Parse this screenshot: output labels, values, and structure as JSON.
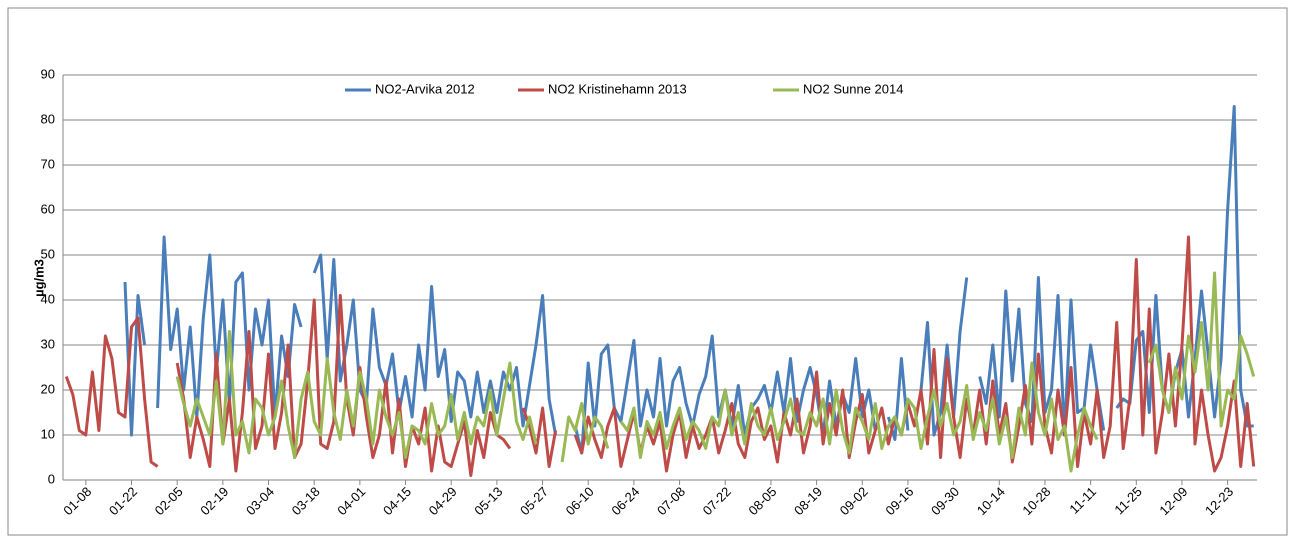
{
  "chart_data": {
    "type": "line",
    "y_label": "µg/m3",
    "ylim": [
      0,
      90
    ],
    "yticks": [
      0,
      10,
      20,
      30,
      40,
      50,
      60,
      70,
      80,
      90
    ],
    "grid": true,
    "legend": "top",
    "categories": [
      null,
      null,
      null,
      "01-08",
      null,
      null,
      null,
      null,
      null,
      null,
      "01-22",
      null,
      null,
      null,
      null,
      null,
      null,
      "02-05",
      null,
      null,
      null,
      null,
      null,
      null,
      "02-19",
      null,
      null,
      null,
      null,
      null,
      null,
      "03-04",
      null,
      null,
      null,
      null,
      null,
      null,
      "03-18",
      null,
      null,
      null,
      null,
      null,
      null,
      "04-01",
      null,
      null,
      null,
      null,
      null,
      null,
      "04-15",
      null,
      null,
      null,
      null,
      null,
      null,
      "04-29",
      null,
      null,
      null,
      null,
      null,
      null,
      "05-13",
      null,
      null,
      null,
      null,
      null,
      null,
      "05-27",
      null,
      null,
      null,
      null,
      null,
      null,
      "06-10",
      null,
      null,
      null,
      null,
      null,
      null,
      "06-24",
      null,
      null,
      null,
      null,
      null,
      null,
      "07-08",
      null,
      null,
      null,
      null,
      null,
      null,
      "07-22",
      null,
      null,
      null,
      null,
      null,
      null,
      "08-05",
      null,
      null,
      null,
      null,
      null,
      null,
      "08-19",
      null,
      null,
      null,
      null,
      null,
      null,
      "09-02",
      null,
      null,
      null,
      null,
      null,
      null,
      "09-16",
      null,
      null,
      null,
      null,
      null,
      null,
      "09-30",
      null,
      null,
      null,
      null,
      null,
      null,
      "10-14",
      null,
      null,
      null,
      null,
      null,
      null,
      "10-28",
      null,
      null,
      null,
      null,
      null,
      null,
      "11-11",
      null,
      null,
      null,
      null,
      null,
      null,
      "11-25",
      null,
      null,
      null,
      null,
      null,
      null,
      "12-09",
      null,
      null,
      null,
      null,
      null,
      null,
      "12-23",
      null,
      null,
      null,
      null
    ],
    "series": [
      {
        "name": "NO2-Arvika 2012",
        "color": "#4a7ebb",
        "values": [
          null,
          null,
          null,
          null,
          null,
          null,
          null,
          null,
          null,
          44,
          10,
          41,
          30,
          null,
          16,
          54,
          29,
          38,
          20,
          34,
          14,
          36,
          50,
          24,
          40,
          17,
          44,
          46,
          20,
          38,
          30,
          40,
          14,
          32,
          23,
          39,
          34,
          null,
          46,
          50,
          27,
          49,
          22,
          30,
          40,
          20,
          17,
          38,
          25,
          21,
          28,
          15,
          23,
          14,
          30,
          20,
          43,
          23,
          29,
          13,
          24,
          22,
          14,
          24,
          15,
          22,
          15,
          24,
          20,
          25,
          12,
          21,
          30,
          41,
          18,
          10,
          null,
          null,
          12,
          6,
          26,
          12,
          28,
          30,
          16,
          13,
          22,
          31,
          12,
          20,
          14,
          27,
          12,
          22,
          25,
          17,
          12,
          19,
          23,
          32,
          14,
          20,
          12,
          21,
          10,
          16,
          18,
          21,
          15,
          24,
          15,
          27,
          13,
          20,
          25,
          19,
          10,
          22,
          12,
          19,
          15,
          27,
          14,
          20,
          11,
          null,
          14,
          9,
          27,
          11,
          null,
          20,
          35,
          10,
          15,
          30,
          14,
          33,
          45,
          null,
          23,
          17,
          30,
          14,
          42,
          22,
          38,
          17,
          13,
          45,
          15,
          20,
          41,
          10,
          40,
          15,
          16,
          30,
          20,
          11,
          null,
          16,
          18,
          17,
          31,
          33,
          15,
          41,
          20,
          15,
          24,
          29,
          14,
          27,
          42,
          28,
          14,
          27,
          60,
          83,
          20,
          12,
          12
        ]
      },
      {
        "name": "NO2 Kristinehamn 2013",
        "color": "#be4b48",
        "values": [
          23,
          19,
          11,
          10,
          24,
          11,
          32,
          27,
          15,
          14,
          34,
          36,
          18,
          4,
          3,
          null,
          null,
          26,
          18,
          5,
          14,
          9,
          3,
          28,
          8,
          18,
          2,
          15,
          33,
          7,
          12,
          28,
          7,
          15,
          30,
          5,
          8,
          22,
          40,
          8,
          7,
          13,
          41,
          18,
          10,
          25,
          14,
          5,
          10,
          22,
          6,
          18,
          3,
          12,
          8,
          16,
          2,
          12,
          4,
          3,
          8,
          13,
          1,
          11,
          5,
          15,
          10,
          9,
          7,
          null,
          16,
          12,
          6,
          16,
          3,
          11,
          null,
          null,
          10,
          6,
          14,
          9,
          5,
          12,
          16,
          3,
          9,
          15,
          6,
          12,
          8,
          13,
          2,
          10,
          15,
          5,
          12,
          7,
          10,
          14,
          6,
          11,
          17,
          8,
          5,
          13,
          16,
          9,
          12,
          4,
          15,
          10,
          18,
          6,
          12,
          24,
          8,
          17,
          10,
          20,
          5,
          13,
          19,
          6,
          11,
          16,
          8,
          14,
          10,
          17,
          12,
          20,
          8,
          29,
          5,
          27,
          14,
          5,
          18,
          10,
          20,
          8,
          22,
          10,
          17,
          4,
          12,
          21,
          8,
          28,
          12,
          6,
          20,
          10,
          25,
          3,
          15,
          8,
          20,
          5,
          12,
          35,
          7,
          18,
          49,
          10,
          38,
          6,
          15,
          28,
          12,
          30,
          54,
          8,
          20,
          10,
          2,
          5,
          12,
          22,
          3,
          17,
          3
        ]
      },
      {
        "name": "NO2 Sunne 2014",
        "color": "#98b954",
        "values": [
          null,
          null,
          null,
          null,
          null,
          null,
          null,
          null,
          null,
          null,
          null,
          null,
          null,
          null,
          null,
          null,
          null,
          23,
          17,
          12,
          18,
          14,
          10,
          22,
          8,
          33,
          10,
          13,
          6,
          18,
          16,
          10,
          14,
          22,
          12,
          5,
          18,
          24,
          13,
          10,
          27,
          15,
          9,
          20,
          12,
          24,
          18,
          8,
          20,
          14,
          10,
          15,
          5,
          12,
          11,
          8,
          17,
          10,
          12,
          19,
          9,
          15,
          8,
          14,
          12,
          20,
          10,
          18,
          26,
          13,
          9,
          14,
          8,
          null,
          null,
          null,
          4,
          14,
          11,
          17,
          8,
          14,
          12,
          7,
          null,
          13,
          11,
          16,
          5,
          13,
          10,
          15,
          7,
          12,
          16,
          9,
          13,
          11,
          7,
          14,
          12,
          20,
          10,
          15,
          8,
          17,
          12,
          10,
          16,
          9,
          13,
          18,
          11,
          10,
          15,
          12,
          18,
          8,
          20,
          11,
          6,
          16,
          13,
          9,
          17,
          7,
          12,
          14,
          10,
          18,
          16,
          7,
          14,
          20,
          12,
          17,
          10,
          13,
          21,
          9,
          15,
          11,
          18,
          8,
          14,
          5,
          16,
          10,
          26,
          15,
          10,
          18,
          9,
          12,
          2,
          10,
          16,
          12,
          9,
          null,
          null,
          null,
          null,
          null,
          null,
          null,
          26,
          30,
          20,
          15,
          25,
          18,
          32,
          24,
          35,
          20,
          46,
          12,
          20,
          18,
          32,
          28,
          23
        ]
      }
    ]
  }
}
